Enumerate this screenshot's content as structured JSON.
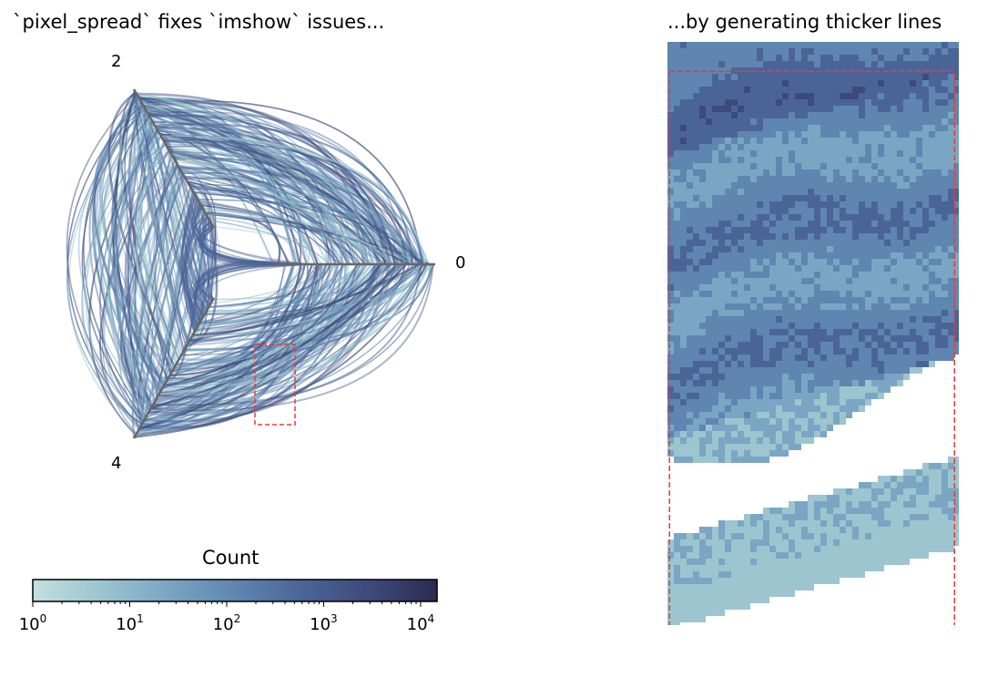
{
  "left_panel": {
    "title": "`pixel_spread` fixes `imshow` issues...",
    "axis_labels": [
      "2",
      "0",
      "4"
    ],
    "colorbar": {
      "title": "Count",
      "ticks": [
        {
          "base": "10",
          "exp": "0"
        },
        {
          "base": "10",
          "exp": "1"
        },
        {
          "base": "10",
          "exp": "2"
        },
        {
          "base": "10",
          "exp": "3"
        },
        {
          "base": "10",
          "exp": "4"
        }
      ],
      "colors": [
        "#c3dfe0",
        "#9cc5d0",
        "#7aa6c3",
        "#5f86b0",
        "#4b6497",
        "#3d4a7a",
        "#2c2a52"
      ]
    }
  },
  "right_panel": {
    "title": "...by generating thicker lines"
  },
  "colors": {
    "edge_light": "#9bc7d1",
    "edge_dark": "#3f4f86",
    "axis": "#666666",
    "zoom_box": "#e83a3a"
  }
}
